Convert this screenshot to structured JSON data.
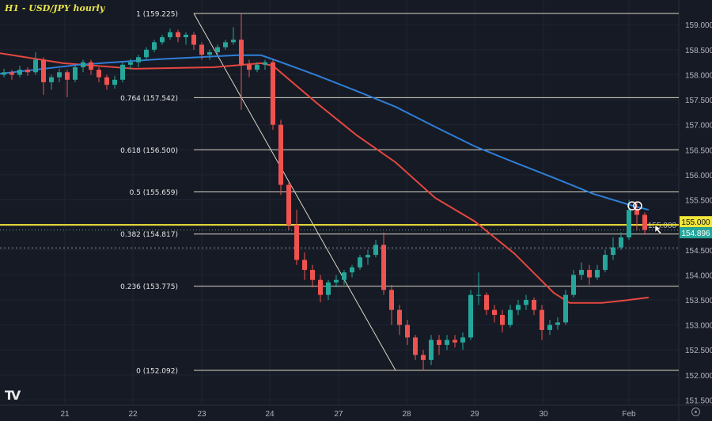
{
  "title": "H1 - USD/JPY hourly",
  "colors": {
    "background": "#161a25",
    "grid": "#1f2433",
    "up": "#26a69a",
    "down": "#ef5350",
    "ma_red": "#e5473f",
    "ma_blue": "#2f7fd6",
    "fib": "#d9d6c3",
    "yellow": "#f2e63a",
    "axis_text": "#b2b5be"
  },
  "chart_data": {
    "type": "candlestick",
    "title": "H1 - USD/JPY hourly",
    "ylim": [
      151.3,
      159.5
    ],
    "y_ticks": [
      "159.000",
      "158.500",
      "158.000",
      "157.500",
      "157.000",
      "156.500",
      "156.000",
      "155.500",
      "155.000",
      "154.500",
      "154.000",
      "153.500",
      "153.000",
      "152.500",
      "152.000",
      "151.500"
    ],
    "x_ticks": [
      {
        "label": "21",
        "index": 7.7
      },
      {
        "label": "22",
        "index": 16.3
      },
      {
        "label": "23",
        "index": 25
      },
      {
        "label": "24",
        "index": 33.6
      },
      {
        "label": "27",
        "index": 42.3
      },
      {
        "label": "28",
        "index": 50.9
      },
      {
        "label": "29",
        "index": 59.5
      },
      {
        "label": "30",
        "index": 68.2
      },
      {
        "label": "Feb",
        "index": 79
      }
    ],
    "grid": true,
    "candles": [
      [
        158.0,
        158.12,
        157.95,
        158.05
      ],
      [
        158.05,
        158.1,
        157.9,
        158.0
      ],
      [
        158.0,
        158.18,
        157.95,
        158.1
      ],
      [
        158.1,
        158.15,
        157.98,
        158.05
      ],
      [
        158.05,
        158.45,
        158.0,
        158.3
      ],
      [
        158.3,
        158.35,
        157.6,
        157.85
      ],
      [
        157.85,
        158.0,
        157.7,
        157.95
      ],
      [
        157.95,
        158.12,
        157.85,
        158.05
      ],
      [
        158.05,
        158.1,
        157.55,
        157.9
      ],
      [
        157.9,
        158.2,
        157.85,
        158.15
      ],
      [
        158.15,
        158.3,
        158.05,
        158.25
      ],
      [
        158.25,
        158.3,
        158.0,
        158.1
      ],
      [
        158.1,
        158.15,
        157.85,
        157.95
      ],
      [
        157.95,
        158.0,
        157.7,
        157.8
      ],
      [
        157.8,
        157.98,
        157.72,
        157.9
      ],
      [
        157.9,
        158.25,
        157.85,
        158.2
      ],
      [
        158.2,
        158.32,
        158.1,
        158.25
      ],
      [
        158.25,
        158.4,
        158.15,
        158.35
      ],
      [
        158.35,
        158.55,
        158.3,
        158.5
      ],
      [
        158.5,
        158.7,
        158.45,
        158.65
      ],
      [
        158.65,
        158.8,
        158.6,
        158.75
      ],
      [
        158.75,
        158.92,
        158.7,
        158.85
      ],
      [
        158.85,
        158.9,
        158.65,
        158.75
      ],
      [
        158.75,
        158.85,
        158.6,
        158.8
      ],
      [
        158.8,
        158.85,
        158.5,
        158.6
      ],
      [
        158.6,
        158.65,
        158.3,
        158.4
      ],
      [
        158.4,
        158.5,
        158.3,
        158.45
      ],
      [
        158.45,
        158.6,
        158.4,
        158.55
      ],
      [
        158.55,
        158.7,
        158.5,
        158.65
      ],
      [
        158.65,
        158.95,
        158.6,
        158.7
      ],
      [
        158.7,
        159.225,
        157.3,
        158.2
      ],
      [
        158.2,
        158.3,
        157.95,
        158.1
      ],
      [
        158.1,
        158.25,
        158.05,
        158.2
      ],
      [
        158.2,
        158.3,
        158.1,
        158.25
      ],
      [
        158.25,
        158.3,
        156.9,
        157.0
      ],
      [
        157.0,
        157.1,
        155.6,
        155.8
      ],
      [
        155.8,
        155.85,
        154.9,
        155.0
      ],
      [
        155.0,
        155.3,
        154.2,
        154.3
      ],
      [
        154.3,
        154.45,
        153.9,
        154.1
      ],
      [
        154.1,
        154.2,
        153.75,
        153.9
      ],
      [
        153.9,
        154.0,
        153.45,
        153.6
      ],
      [
        153.6,
        153.9,
        153.5,
        153.85
      ],
      [
        153.85,
        154.0,
        153.75,
        153.9
      ],
      [
        153.9,
        154.1,
        153.8,
        154.05
      ],
      [
        154.05,
        154.2,
        153.95,
        154.15
      ],
      [
        154.15,
        154.4,
        154.1,
        154.35
      ],
      [
        154.35,
        154.5,
        154.2,
        154.4
      ],
      [
        154.4,
        154.7,
        154.35,
        154.6
      ],
      [
        154.6,
        154.85,
        153.6,
        153.7
      ],
      [
        153.7,
        153.8,
        153.0,
        153.3
      ],
      [
        153.3,
        153.4,
        152.8,
        153.0
      ],
      [
        153.0,
        153.1,
        152.6,
        152.75
      ],
      [
        152.75,
        152.8,
        152.3,
        152.4
      ],
      [
        152.4,
        152.5,
        152.09,
        152.3
      ],
      [
        152.3,
        152.8,
        152.2,
        152.7
      ],
      [
        152.7,
        152.8,
        152.4,
        152.6
      ],
      [
        152.6,
        152.8,
        152.5,
        152.7
      ],
      [
        152.7,
        152.8,
        152.55,
        152.65
      ],
      [
        152.65,
        152.85,
        152.5,
        152.75
      ],
      [
        152.75,
        153.7,
        152.7,
        153.6
      ],
      [
        153.6,
        154.05,
        153.4,
        153.6
      ],
      [
        153.6,
        153.65,
        153.2,
        153.3
      ],
      [
        153.3,
        153.4,
        153.05,
        153.2
      ],
      [
        153.2,
        153.3,
        152.85,
        153.0
      ],
      [
        153.0,
        153.4,
        152.95,
        153.3
      ],
      [
        153.3,
        153.5,
        153.2,
        153.4
      ],
      [
        153.4,
        153.6,
        153.3,
        153.5
      ],
      [
        153.5,
        153.55,
        153.2,
        153.3
      ],
      [
        153.3,
        153.4,
        152.7,
        152.9
      ],
      [
        152.9,
        153.1,
        152.8,
        153.0
      ],
      [
        153.0,
        153.15,
        152.9,
        153.05
      ],
      [
        153.05,
        153.7,
        153.0,
        153.6
      ],
      [
        153.6,
        154.1,
        153.55,
        154.0
      ],
      [
        154.0,
        154.25,
        153.9,
        154.1
      ],
      [
        154.1,
        154.2,
        153.8,
        153.95
      ],
      [
        153.95,
        154.2,
        153.9,
        154.1
      ],
      [
        154.1,
        154.5,
        154.05,
        154.4
      ],
      [
        154.4,
        154.75,
        154.3,
        154.55
      ],
      [
        154.55,
        154.85,
        154.5,
        154.75
      ],
      [
        154.75,
        155.5,
        154.7,
        155.3
      ],
      [
        155.3,
        155.45,
        154.9,
        155.2
      ],
      [
        155.2,
        155.25,
        154.8,
        154.9
      ]
    ],
    "moving_averages": [
      {
        "color": "#e5473f",
        "points": [
          [
            -0.5,
            158.43
          ],
          [
            7.5,
            158.23
          ],
          [
            16.5,
            158.12
          ],
          [
            26.5,
            158.15
          ],
          [
            32.5,
            158.23
          ],
          [
            34,
            158.18
          ],
          [
            39.5,
            157.44
          ],
          [
            44.5,
            156.8
          ],
          [
            49.5,
            156.25
          ],
          [
            54.5,
            155.54
          ],
          [
            59.5,
            155.07
          ],
          [
            64.5,
            154.43
          ],
          [
            69.5,
            153.64
          ],
          [
            71.5,
            153.44
          ],
          [
            75.5,
            153.44
          ],
          [
            78.5,
            153.49
          ],
          [
            81.5,
            153.55
          ]
        ]
      },
      {
        "color": "#2f7fd6",
        "points": [
          [
            -0.5,
            158.02
          ],
          [
            9.5,
            158.2
          ],
          [
            19.5,
            158.31
          ],
          [
            29.5,
            158.39
          ],
          [
            32.5,
            158.39
          ],
          [
            34.5,
            158.28
          ],
          [
            39.5,
            157.99
          ],
          [
            44.5,
            157.68
          ],
          [
            49.5,
            157.36
          ],
          [
            54.5,
            156.96
          ],
          [
            59.5,
            156.57
          ],
          [
            64.5,
            156.25
          ],
          [
            69.5,
            155.94
          ],
          [
            74.5,
            155.62
          ],
          [
            79.5,
            155.38
          ],
          [
            81.5,
            155.3
          ]
        ]
      }
    ],
    "fib_levels": [
      {
        "label": "1 (159.225)",
        "price": 159.225
      },
      {
        "label": "0.764 (157.542)",
        "price": 157.542
      },
      {
        "label": "0.618 (156.500)",
        "price": 156.5
      },
      {
        "label": "0.5 (155.659)",
        "price": 155.659
      },
      {
        "label": "0.382 (154.817)",
        "price": 154.817
      },
      {
        "label": "0.236 (153.775)",
        "price": 153.775
      },
      {
        "label": "0 (152.092)",
        "price": 152.092
      }
    ],
    "trend_line": {
      "from": [
        24,
        159.225
      ],
      "to": [
        49.5,
        152.092
      ]
    },
    "horizontal_line": {
      "price": 155.0,
      "label": "155.000"
    },
    "current_price": {
      "price": 154.896,
      "label": "154.896"
    },
    "dotted_level": 154.54,
    "circle_markers": [
      [
        79.4,
        155.38
      ],
      [
        80.1,
        155.38
      ]
    ]
  }
}
